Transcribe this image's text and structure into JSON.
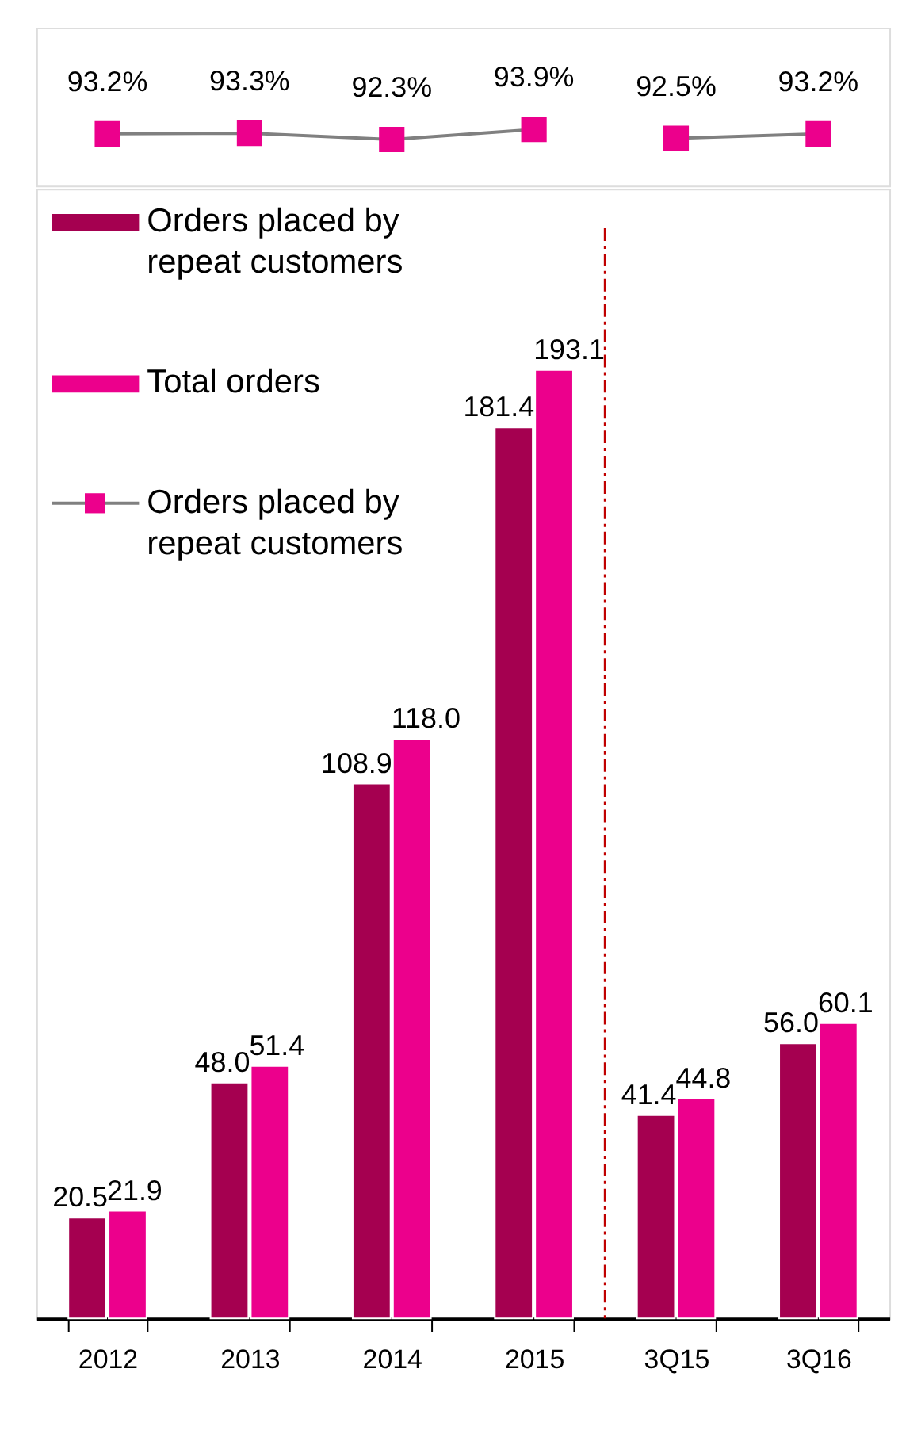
{
  "chart_data": [
    {
      "type": "line",
      "categories": [
        null,
        null,
        null,
        null,
        null,
        null
      ],
      "series": [
        {
          "name": "Orders placed by repeat customers",
          "color": "#808080",
          "values": [
            93.2,
            93.3,
            92.3,
            93.9,
            null,
            null
          ],
          "value_labels": [
            "93.2%",
            "93.3%",
            "92.3%",
            "93.9%",
            null,
            null
          ]
        },
        {
          "color": "#808080",
          "values": [
            null,
            null,
            null,
            null,
            92.5,
            93.2
          ],
          "value_labels": [
            null,
            null,
            null,
            null,
            "92.5%",
            "93.2%"
          ]
        }
      ],
      "ylim": [
        85,
        110
      ],
      "tick_labels": false,
      "marker": "square",
      "legend": "bottom left"
    },
    {
      "type": "bar",
      "categories": [
        "2012",
        "2013",
        "2014",
        "2015",
        "3Q15",
        "3Q16"
      ],
      "series": [
        {
          "name": "Orders placed by repeat customers",
          "color": "#a50050",
          "values": [
            20.5,
            48.0,
            108.9,
            181.4,
            41.4,
            56.0
          ],
          "value_labels": [
            "20.5",
            "48.0",
            "108.9",
            "181.4",
            "41.4",
            "56.0"
          ]
        },
        {
          "name": "Total orders",
          "color": "#ec008c",
          "values": [
            21.9,
            51.4,
            118.0,
            193.1,
            44.8,
            60.1
          ],
          "value_labels": [
            "21.9",
            "51.4",
            "118.0",
            "193.1",
            "44.8",
            "60.1"
          ]
        }
      ],
      "ylim": [
        0,
        230
      ],
      "tick_labels": "x",
      "legend": "top left",
      "ref_lines": [
        {
          "axis": "x",
          "value": "3Q15",
          "color": "#c00000",
          "line_style": "dashed"
        }
      ]
    }
  ]
}
